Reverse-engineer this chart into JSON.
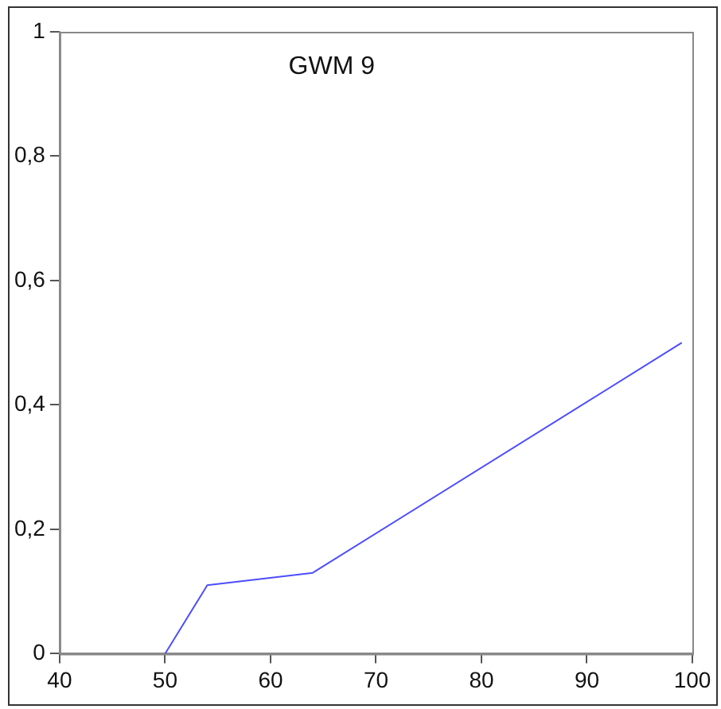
{
  "chart_data": {
    "type": "line",
    "title": "GWM 9",
    "x": [
      50,
      54,
      64,
      99
    ],
    "series": [
      {
        "color": "#4d4dff",
        "values": [
          0,
          0.11,
          0.13,
          0.5
        ]
      }
    ],
    "xlim": [
      40,
      100
    ],
    "xticks": [
      40,
      50,
      60,
      70,
      80,
      90,
      100
    ],
    "ylim": [
      0,
      1
    ],
    "yticks": [
      0,
      {
        "value": 0.2,
        "label": "0,2"
      },
      {
        "value": 0.4,
        "label": "0,4"
      },
      {
        "value": 0.6,
        "label": "0,6"
      },
      {
        "value": 0.8,
        "label": "0,8"
      },
      1
    ],
    "grid": false,
    "legend": false,
    "marker": "none",
    "line_style": "solid"
  }
}
